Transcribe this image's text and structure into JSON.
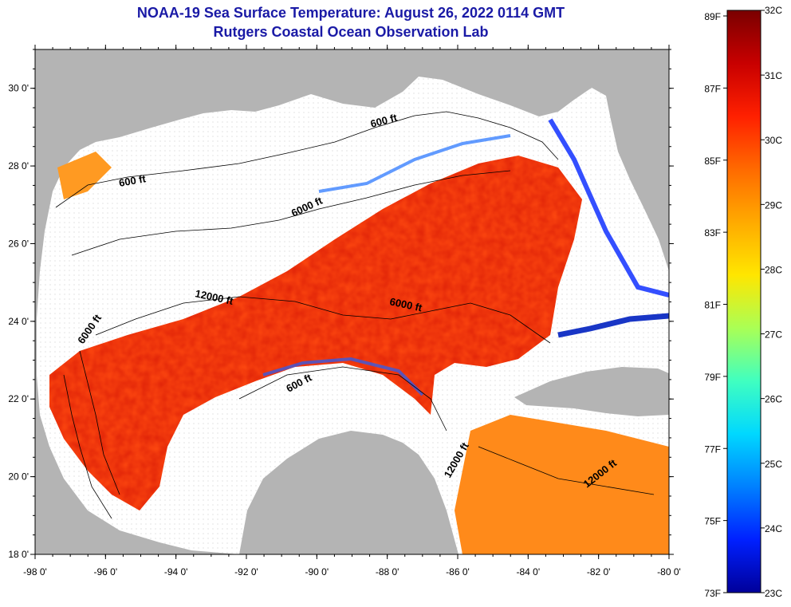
{
  "title_line1": "NOAA-19 Sea Surface Temperature:  August 26, 2022 0114 GMT",
  "title_line2": "Rutgers Coastal Ocean Observation Lab",
  "map": {
    "lon_ticks": [
      "-98 0'",
      "-96 0'",
      "-94 0'",
      "-92 0'",
      "-90 0'",
      "-88 0'",
      "-86 0'",
      "-84 0'",
      "-82 0'",
      "-80 0'"
    ],
    "lat_ticks": [
      "30 0'",
      "28 0'",
      "26 0'",
      "24 0'",
      "22 0'",
      "20 0'",
      "18 0'"
    ],
    "lon_range": [
      -98,
      -80
    ],
    "lat_range": [
      18,
      31
    ],
    "contour_labels": [
      "600 ft",
      "600 ft",
      "6000 ft",
      "12000 ft",
      "6000 ft",
      "6000 ft",
      "600 ft",
      "12000 ft",
      "12000 ft"
    ]
  },
  "colorbar": {
    "f_labels": [
      "89F",
      "87F",
      "85F",
      "83F",
      "81F",
      "79F",
      "77F",
      "75F",
      "73F"
    ],
    "c_labels": [
      "32C",
      "31C",
      "30C",
      "29C",
      "28C",
      "27C",
      "26C",
      "25C",
      "24C",
      "23C"
    ],
    "colors": [
      "#7a0000",
      "#c80000",
      "#ff2000",
      "#ff6a00",
      "#ffaa00",
      "#ffe600",
      "#aaff55",
      "#40ffc0",
      "#00d8ff",
      "#0080ff",
      "#0020ff",
      "#00009a"
    ]
  }
}
